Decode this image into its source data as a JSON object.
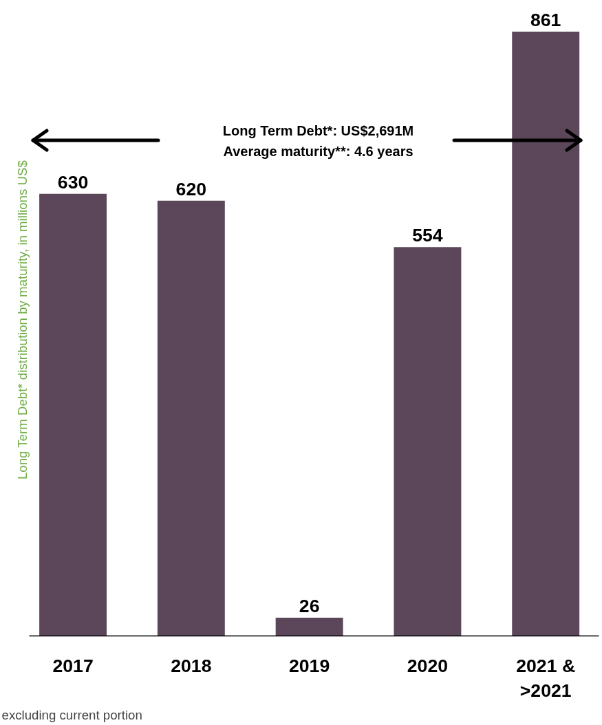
{
  "chart_data": {
    "type": "bar",
    "ylabel": "Long Term Debt* distribution by maturity, in millions US$",
    "categories": [
      "2017",
      "2018",
      "2019",
      "2020",
      "2021 &\n>2021"
    ],
    "values": [
      630,
      620,
      26,
      554,
      861
    ],
    "color": "#5c4659",
    "data_labels": true,
    "grid": false,
    "annotations": [
      "Long Term Debt*: US$2,691M",
      "Average maturity**: 4.6 years",
      "excluding current portion"
    ]
  }
}
